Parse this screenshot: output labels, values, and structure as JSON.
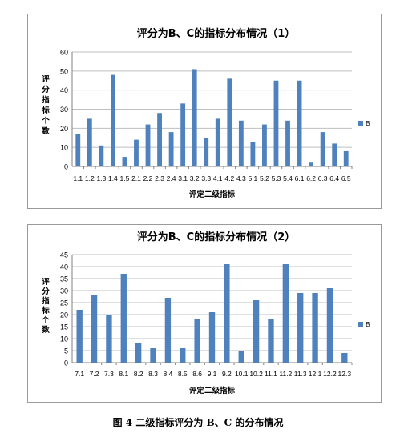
{
  "figure_caption": "图 4 二级指标评分为 B、C 的分布情况",
  "colors": {
    "bar": "#4f81bd",
    "grid": "#bfbfbf",
    "axis": "#808080",
    "text": "#000000"
  },
  "chart_data": [
    {
      "type": "bar",
      "title": "评分为B、C的指标分布情况（1）",
      "xlabel": "评定二级指标",
      "ylabel": "评分指标个数",
      "legend": "B",
      "legend_position": "right",
      "grid": true,
      "ylim": [
        0,
        60
      ],
      "yticks": [
        0,
        10,
        20,
        30,
        40,
        50,
        60
      ],
      "categories": [
        "1.1",
        "1.2",
        "1.3",
        "1.4",
        "1.5",
        "2.1",
        "2.2",
        "2.3",
        "2.4",
        "3.1",
        "3.2",
        "3.3",
        "4.1",
        "4.2",
        "4.3",
        "5.1",
        "5.2",
        "5.3",
        "5.4",
        "6.1",
        "6.2",
        "6.3",
        "6.4",
        "6.5"
      ],
      "series": [
        {
          "name": "B",
          "values": [
            17,
            25,
            11,
            48,
            5,
            14,
            22,
            28,
            18,
            33,
            51,
            15,
            25,
            46,
            24,
            13,
            22,
            45,
            24,
            45,
            2,
            18,
            12,
            8
          ]
        }
      ]
    },
    {
      "type": "bar",
      "title": "评分为B、C的指标分布情况（2）",
      "xlabel": "评定二级指标",
      "ylabel": "评分指标个数",
      "legend": "B",
      "legend_position": "right",
      "grid": true,
      "ylim": [
        0,
        45
      ],
      "yticks": [
        0,
        5,
        10,
        15,
        20,
        25,
        30,
        35,
        40,
        45
      ],
      "categories": [
        "7.1",
        "7.2",
        "7.3",
        "8.1",
        "8.2",
        "8.3",
        "8.4",
        "8.5",
        "8.6",
        "9.1",
        "9.2",
        "10.1",
        "10.2",
        "11.1",
        "11.2",
        "11.3",
        "12.1",
        "12.2",
        "12.3"
      ],
      "series": [
        {
          "name": "B",
          "values": [
            22,
            28,
            20,
            37,
            8,
            6,
            27,
            6,
            18,
            21,
            41,
            5,
            26,
            18,
            41,
            29,
            29,
            31,
            4
          ]
        }
      ]
    }
  ]
}
